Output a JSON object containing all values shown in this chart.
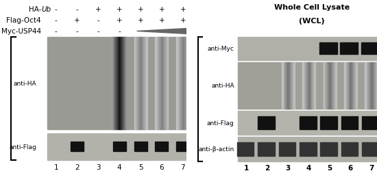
{
  "left_panel": {
    "ha_ub_signs": [
      "-",
      "-",
      "+",
      "+",
      "+",
      "+",
      "+"
    ],
    "flag_oct4_signs": [
      "-",
      "+",
      "-",
      "+",
      "+",
      "+",
      "+"
    ],
    "myc_usp44_dashes": [
      "-",
      "-",
      "-",
      "-"
    ],
    "lane_numbers": [
      "1",
      "2",
      "3",
      "4",
      "5",
      "6",
      "7"
    ],
    "blot1_label": "anti-HA",
    "blot2_label": "anti-Flag",
    "blot1_bg": "#9a9a94",
    "blot2_bg": "#b2b2aa",
    "band_color": "#111111"
  },
  "right_panel": {
    "title_line1": "Whole Cell Lysate",
    "title_line2": "(WCL)",
    "blot_labels": [
      "anti-Myc",
      "anti-HA",
      "anti-Flag",
      "anti-β-actin"
    ],
    "lane_numbers": [
      "1",
      "2",
      "3",
      "4",
      "5",
      "6",
      "7"
    ],
    "myc_bg": "#b0b0a8",
    "ha_bg": "#a0a098",
    "flag_bg": "#b4b4ac",
    "actin_bg": "#b0b0a8",
    "band_color": "#111111",
    "actin_band_color": "#333333"
  },
  "bg_color": "#ffffff",
  "text_color": "#000000",
  "font_size_label": 6.5,
  "font_size_sign": 7.5,
  "font_size_lane": 7.5,
  "font_size_title": 8
}
